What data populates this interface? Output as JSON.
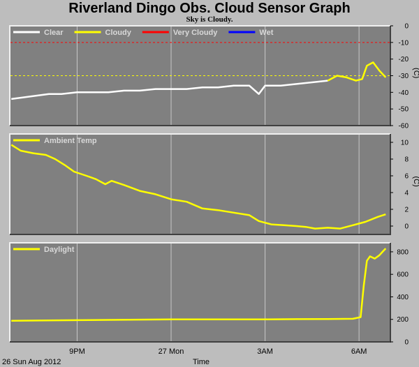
{
  "header": {
    "title": "Riverland Dingo Obs. Cloud Sensor Graph",
    "subtitle": "Sky is Cloudy."
  },
  "footer": {
    "date_label": "26 Sun Aug 2012",
    "time_label": "Time"
  },
  "colors": {
    "panel_bg": "#808080",
    "border_light": "#f0f0f0",
    "border_dark": "#404040",
    "grid": "#c8c8c8",
    "clear": "#ffffff",
    "cloudy": "#ffff00",
    "very_cloudy": "#ff0000",
    "wet": "#0000ff"
  },
  "chart_data": [
    {
      "type": "line",
      "name": "sky-temperature",
      "unit_label": "(C)",
      "ylim": [
        -60,
        0
      ],
      "yticks": [
        0,
        -10,
        -20,
        -30,
        -40,
        -50,
        -60
      ],
      "xticks": [
        "9PM",
        "27 Mon",
        "3AM",
        "6AM"
      ],
      "xtick_hours": [
        21,
        24,
        27,
        30
      ],
      "xlim_hours": [
        18.85,
        31.0
      ],
      "legend": [
        {
          "label": "Clear",
          "color": "#ffffff"
        },
        {
          "label": "Cloudy",
          "color": "#ffff00"
        },
        {
          "label": "Very Cloudy",
          "color": "#ff0000"
        },
        {
          "label": "Wet",
          "color": "#0000ff"
        }
      ],
      "thresholds": [
        {
          "value": -10,
          "color": "#ff0000"
        },
        {
          "value": -30,
          "color": "#ffff00"
        }
      ],
      "series": [
        {
          "color": "#ffffff",
          "x": [
            18.9,
            19.3,
            19.7,
            20.1,
            20.5,
            21.0,
            21.5,
            22.0,
            22.5,
            23.0,
            23.5,
            24.0,
            24.5,
            25.0,
            25.5,
            26.0,
            26.5,
            26.8,
            27.0,
            27.5,
            28.0,
            28.5,
            29.0
          ],
          "y": [
            -44,
            -43,
            -42,
            -41,
            -41,
            -40,
            -40,
            -40,
            -39,
            -39,
            -38,
            -38,
            -38,
            -37,
            -37,
            -36,
            -36,
            -41,
            -36,
            -36,
            -35,
            -34,
            -33
          ]
        },
        {
          "color": "#ffff00",
          "x": [
            29.0,
            29.3,
            29.6,
            29.9,
            30.1,
            30.25,
            30.45,
            30.65,
            30.85
          ],
          "y": [
            -33,
            -30,
            -31,
            -33,
            -32,
            -24,
            -22,
            -27,
            -31
          ]
        }
      ]
    },
    {
      "type": "line",
      "name": "ambient-temperature",
      "unit_label": "(C)",
      "ylim": [
        -1,
        11
      ],
      "yticks": [
        10,
        8,
        6,
        4,
        2,
        0
      ],
      "xticks": [
        "9PM",
        "27 Mon",
        "3AM",
        "6AM"
      ],
      "xtick_hours": [
        21,
        24,
        27,
        30
      ],
      "xlim_hours": [
        18.85,
        31.0
      ],
      "legend": [
        {
          "label": "Ambient Temp",
          "color": "#ffff00"
        }
      ],
      "series": [
        {
          "color": "#ffff00",
          "x": [
            18.9,
            19.2,
            19.6,
            20.0,
            20.3,
            20.6,
            20.9,
            21.3,
            21.6,
            21.9,
            22.1,
            22.5,
            23.0,
            23.5,
            24.0,
            24.5,
            25.0,
            25.5,
            26.0,
            26.5,
            26.8,
            27.2,
            27.6,
            28.0,
            28.3,
            28.6,
            29.0,
            29.4,
            29.8,
            30.2,
            30.6,
            30.85
          ],
          "y": [
            9.7,
            9.0,
            8.7,
            8.5,
            8.0,
            7.3,
            6.5,
            6.0,
            5.6,
            5.0,
            5.4,
            4.9,
            4.2,
            3.8,
            3.2,
            2.9,
            2.1,
            1.9,
            1.6,
            1.3,
            0.6,
            0.2,
            0.1,
            0.0,
            -0.1,
            -0.3,
            -0.2,
            -0.3,
            0.1,
            0.5,
            1.1,
            1.4
          ]
        }
      ]
    },
    {
      "type": "line",
      "name": "daylight",
      "unit_label": "",
      "ylim": [
        0,
        880
      ],
      "yticks": [
        800,
        600,
        400,
        200,
        0
      ],
      "xticks": [
        "9PM",
        "27 Mon",
        "3AM",
        "6AM"
      ],
      "xtick_hours": [
        21,
        24,
        27,
        30
      ],
      "xlim_hours": [
        18.85,
        31.0
      ],
      "legend": [
        {
          "label": "Daylight",
          "color": "#ffff00"
        }
      ],
      "series": [
        {
          "color": "#ffff00",
          "x": [
            18.9,
            20.0,
            21.0,
            22.0,
            23.0,
            24.0,
            25.0,
            26.0,
            27.0,
            28.0,
            29.0,
            29.8,
            30.05,
            30.15,
            30.25,
            30.35,
            30.5,
            30.65,
            30.75,
            30.85
          ],
          "y": [
            188,
            190,
            193,
            195,
            198,
            200,
            200,
            200,
            200,
            202,
            203,
            205,
            220,
            500,
            720,
            760,
            740,
            770,
            800,
            830
          ]
        }
      ]
    }
  ]
}
